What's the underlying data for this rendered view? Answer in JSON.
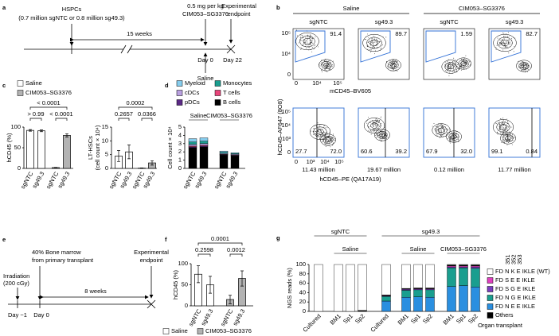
{
  "panels": {
    "a": {
      "label": "a",
      "cells": "HSPCs",
      "cell_doses": "(0.7 million sgNTC or 0.8 million sg49.3)",
      "dose": "0.5 mg per kg",
      "drug": "CIM053–SG3376",
      "endpoint": [
        "Experimental",
        "endpoint"
      ],
      "duration": "15 weeks",
      "start": "Day 0",
      "end": "Day 22",
      "control": "Saline"
    },
    "b": {
      "label": "b",
      "treatments": [
        "Saline",
        "CIM053–SG3376"
      ],
      "genotypes": [
        "sgNTC",
        "sg49.3",
        "sgNTC",
        "sg49.3"
      ],
      "top_gates": [
        "91.4",
        "89.7",
        "1.59",
        "82.7"
      ],
      "top_xlabel": "mCD45–BV605",
      "top_xticks": [
        "0",
        "10⁴",
        "10⁵"
      ],
      "top_yticks": [
        "10⁵",
        "10⁴",
        "0"
      ],
      "ylabel": "hCD45–AF647 (8O8)",
      "bottom_quadrants": [
        [
          "27.7",
          "72.0"
        ],
        [
          "60.6",
          "39.2"
        ],
        [
          "67.9",
          "32.0"
        ],
        [
          "99.1",
          "0.84"
        ]
      ],
      "bottom_counts": [
        "11.43 million",
        "19.67 million",
        "0.12 million",
        "11.77 million"
      ],
      "bottom_xlabel": "hCD45–PE (QA17A19)",
      "bottom_xticks": [
        "0",
        "10³",
        "10⁴",
        "10⁵"
      ],
      "bottom_yticks": [
        "10⁵",
        "10⁴",
        "10³",
        "0"
      ]
    },
    "e": {
      "label": "e",
      "graft": [
        "40% Bone marrow",
        "from primary transplant"
      ],
      "conditioning": [
        "Irradiation",
        "(200 cGy)"
      ],
      "day_before": "Day −1",
      "start": "Day 0",
      "duration": "8 weeks",
      "endpoint": [
        "Experimental",
        "endpoint"
      ]
    }
  },
  "chart_data": [
    {
      "panel": "c",
      "type": "bar",
      "ylabel": "hCD45 (%)",
      "categories": [
        "sgNTC",
        "sg49.3",
        "sgNTC",
        "sg49.3"
      ],
      "series": [
        {
          "name": "Saline",
          "color": "#ffffff",
          "values": [
            92,
            91,
            null,
            null
          ],
          "errors": [
            2,
            2,
            null,
            null
          ]
        },
        {
          "name": "CIM053–SG3376",
          "color": "#b3b3b3",
          "values": [
            null,
            null,
            2,
            80
          ],
          "errors": [
            null,
            null,
            0.5,
            4
          ]
        }
      ],
      "ylim": [
        0,
        100
      ],
      "yticks": [
        0,
        50,
        100
      ],
      "annotations": [
        "< 0.0001",
        "> 0.99",
        "< 0.0001"
      ]
    },
    {
      "type": "bar",
      "ylabel": [
        "LT-HSCs",
        "(cell count × 10⁴)"
      ],
      "categories": [
        "sgNTC",
        "sg49.3",
        "sgNTC",
        "sg49.3"
      ],
      "series": [
        {
          "name": "Saline",
          "color": "#ffffff",
          "values": [
            4.5,
            6,
            null,
            null
          ],
          "errors": [
            2,
            2.5,
            null,
            null
          ]
        },
        {
          "name": "CIM053–SG3376",
          "color": "#b3b3b3",
          "values": [
            null,
            null,
            0.1,
            2
          ],
          "errors": [
            null,
            null,
            0.1,
            0.8
          ]
        }
      ],
      "ylim": [
        0,
        15
      ],
      "yticks": [
        0,
        5,
        10,
        15
      ],
      "annotations": [
        "0.0002",
        "0.2657",
        "0.0366"
      ]
    },
    {
      "panel": "d",
      "type": "bar",
      "stacked": true,
      "ylabel": "Cell count × 10⁴",
      "categories": [
        "sgNTC",
        "sg49.3",
        "sgNTC",
        "sg49.3"
      ],
      "groups": [
        "Saline",
        "CIM053–SG3376"
      ],
      "series": [
        {
          "name": "Myeloid",
          "color": "#86cdee",
          "values": [
            0.4,
            0.4,
            0.15,
            0.1
          ]
        },
        {
          "name": "Monocytes",
          "color": "#1a9e8f",
          "values": [
            0.3,
            0.3,
            0.15,
            0.1
          ]
        },
        {
          "name": "cDCs",
          "color": "#b9a0e0",
          "values": [
            0.2,
            0.2,
            0.1,
            0.1
          ]
        },
        {
          "name": "T cells",
          "color": "#e8447a",
          "values": [
            0.1,
            0.1,
            0.05,
            0.05
          ]
        },
        {
          "name": "pDCs",
          "color": "#5b2a86",
          "values": [
            0.1,
            0.1,
            0.05,
            0.05
          ]
        },
        {
          "name": "B cells",
          "color": "#000000",
          "values": [
            2.5,
            2.6,
            1.6,
            1.5
          ]
        }
      ],
      "ylim": [
        0,
        5
      ],
      "yticks": [
        0,
        1,
        2,
        3,
        4,
        5
      ]
    },
    {
      "panel": "f",
      "type": "bar",
      "ylabel": "hCD45 (%)",
      "categories": [
        "sgNTC",
        "sg49.3",
        "sgNTC",
        "sg49.3"
      ],
      "series": [
        {
          "name": "Saline",
          "color": "#ffffff",
          "values": [
            75,
            50,
            null,
            null
          ],
          "errors": [
            20,
            20,
            null,
            null
          ]
        },
        {
          "name": "CIM053–SG3376",
          "color": "#b3b3b3",
          "values": [
            null,
            null,
            15,
            65
          ],
          "errors": [
            null,
            null,
            10,
            18
          ]
        }
      ],
      "ylim": [
        0,
        100
      ],
      "yticks": [
        0,
        50,
        100
      ],
      "annotations": [
        "0.0001",
        "0.2598",
        "0.0012"
      ]
    },
    {
      "panel": "g",
      "type": "bar",
      "stacked": true,
      "ylabel": "NGS reads (%)",
      "xlabel": "Organ transplant",
      "categories": [
        "Cultured",
        "BM1",
        "Sp1",
        "Sp2",
        "Cultured",
        "BM1",
        "Sp1",
        "Sp2",
        "BM1",
        "Sp1",
        "Sp2"
      ],
      "groups": [
        "sgNTC",
        "sg49.3",
        "Saline",
        "Saline",
        "CIM053–SG3376"
      ],
      "residues": [
        351,
        352,
        353
      ],
      "series": [
        {
          "name": "FD N K E IKLE (WT)",
          "color": "#ffffff",
          "values": [
            100,
            100,
            100,
            98,
            65,
            51,
            50,
            50,
            1,
            1,
            1
          ]
        },
        {
          "name": "FD S E E IKLE",
          "color": "#e040c0",
          "values": [
            0,
            0,
            0,
            0,
            1,
            1,
            1,
            1,
            2,
            2,
            2
          ]
        },
        {
          "name": "FD S G E IKLE",
          "color": "#7b3fbf",
          "values": [
            0,
            0,
            0,
            0,
            1,
            2,
            2,
            2,
            2,
            2,
            3
          ]
        },
        {
          "name": "FD N G E IKLE",
          "color": "#1a9e8f",
          "values": [
            0,
            0,
            0,
            0,
            10,
            15,
            15,
            16,
            40,
            38,
            40
          ]
        },
        {
          "name": "FD N E E IKLE",
          "color": "#2a8fe0",
          "values": [
            0,
            0,
            0,
            0,
            22,
            30,
            31,
            30,
            53,
            55,
            52
          ]
        },
        {
          "name": "Others",
          "color": "#000000",
          "values": [
            0,
            0,
            0,
            2,
            1,
            1,
            1,
            1,
            2,
            2,
            2
          ]
        }
      ],
      "ylim": [
        0,
        100
      ],
      "yticks": [
        0,
        20,
        40,
        60,
        80,
        100
      ]
    }
  ]
}
